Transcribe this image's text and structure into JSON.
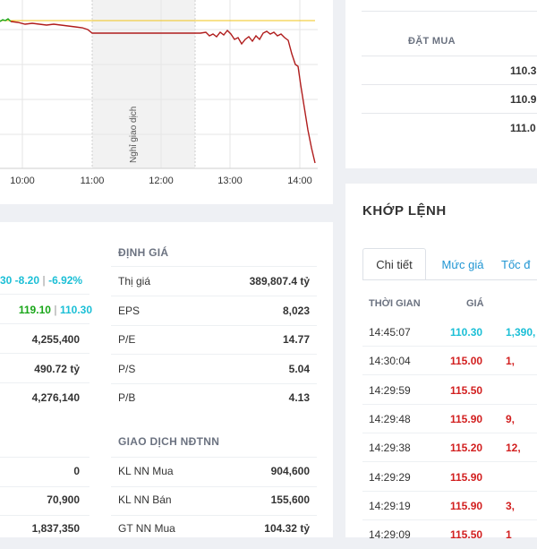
{
  "chart": {
    "time_labels": [
      "10:00",
      "11:00",
      "12:00",
      "13:00",
      "14:00"
    ],
    "break_label": "Nghỉ giao dịch",
    "ref_line_color": "#f0c419",
    "price_line_color": "#b01c1c",
    "up_color": "#19a619"
  },
  "order_book": {
    "header": "ĐẶT MUA",
    "prices": [
      {
        "value": "110.3",
        "color": "#1bbfd6"
      },
      {
        "value": "110.9",
        "color": "#d21f1f"
      },
      {
        "value": "111.0",
        "color": "#d21f1f"
      }
    ]
  },
  "info": {
    "left_rows": [
      {
        "value": "30 -8.20 | -6.92%",
        "parts": [
          "30 -8.20",
          "-6.92%"
        ],
        "color": "#1bbfd6"
      },
      {
        "value": "119.10 | 110.30",
        "parts": [
          "119.10",
          "110.30"
        ]
      },
      {
        "value": "4,255,400"
      },
      {
        "value": "490.72 tỷ"
      },
      {
        "value": "4,276,140"
      }
    ],
    "left_rows_2": [
      {
        "value": "0"
      },
      {
        "value": "70,900"
      },
      {
        "value": "1,837,350"
      }
    ],
    "valuation_title": "ĐỊNH GIÁ",
    "valuation": [
      {
        "label": "Thị giá",
        "value": "389,807.4 tỷ"
      },
      {
        "label": "EPS",
        "value": "8,023"
      },
      {
        "label": "P/E",
        "value": "14.77"
      },
      {
        "label": "P/S",
        "value": "5.04"
      },
      {
        "label": "P/B",
        "value": "4.13"
      }
    ],
    "foreign_title": "GIAO DỊCH NĐTNN",
    "foreign": [
      {
        "label": "KL NN Mua",
        "value": "904,600"
      },
      {
        "label": "KL NN Bán",
        "value": "155,600"
      },
      {
        "label": "GT NN Mua",
        "value": "104.32 tỷ"
      }
    ]
  },
  "match": {
    "title": "KHỚP LỆNH",
    "tabs": [
      "Chi tiết",
      "Mức giá",
      "Tốc đ"
    ],
    "headers": {
      "time": "THỜI GIAN",
      "price": "GIÁ"
    },
    "rows": [
      {
        "time": "14:45:07",
        "price": "110.30",
        "volume": "1,390,",
        "color": "cyan"
      },
      {
        "time": "14:30:04",
        "price": "115.00",
        "volume": "1,",
        "color": "red"
      },
      {
        "time": "14:29:59",
        "price": "115.50",
        "volume": "",
        "color": "red"
      },
      {
        "time": "14:29:48",
        "price": "115.90",
        "volume": "9,",
        "color": "red"
      },
      {
        "time": "14:29:38",
        "price": "115.20",
        "volume": "12,",
        "color": "red"
      },
      {
        "time": "14:29:29",
        "price": "115.90",
        "volume": "",
        "color": "red"
      },
      {
        "time": "14:29:19",
        "price": "115.90",
        "volume": "3,",
        "color": "red"
      },
      {
        "time": "14:29:09",
        "price": "115.50",
        "volume": "1",
        "color": "red"
      }
    ]
  }
}
